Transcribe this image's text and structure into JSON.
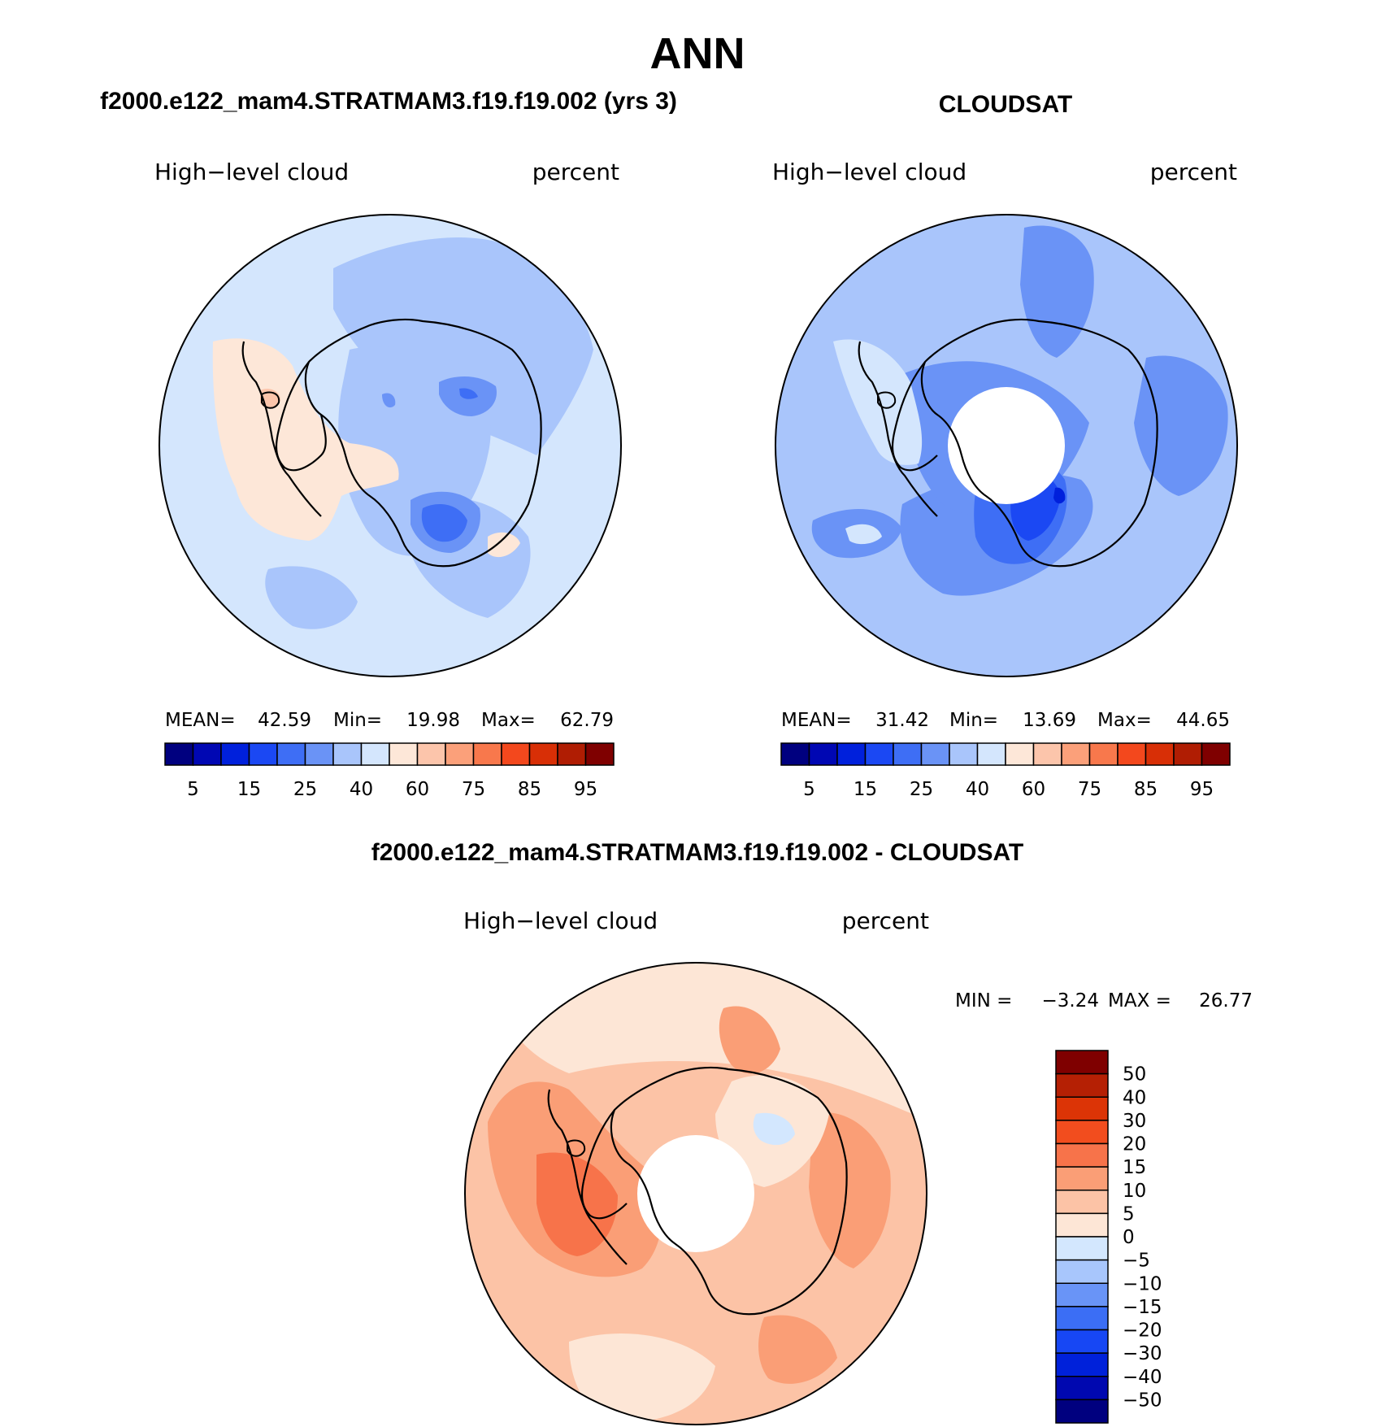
{
  "title": "ANN",
  "colors": {
    "abs_scale": [
      "#00007f",
      "#0007b3",
      "#0020dc",
      "#1b48f3",
      "#3e6ef5",
      "#6a93f6",
      "#a9c5fb",
      "#d4e6fd",
      "#fde7d8",
      "#fcc5ab",
      "#fba07a",
      "#f8784c",
      "#f3481d",
      "#d82f06",
      "#b01d03",
      "#7f0000"
    ],
    "diff_scale": [
      "#00007f",
      "#0008b0",
      "#0021da",
      "#1747f4",
      "#3b6ef5",
      "#6994f7",
      "#a8c6fc",
      "#d3e7fe",
      "#fde6d6",
      "#fcc3a6",
      "#fa9e76",
      "#f7734a",
      "#f24d1e",
      "#dc3406",
      "#b52004",
      "#7f0000"
    ]
  },
  "panels": [
    {
      "id": "model",
      "heading": "f2000.e122_mam4.STRATMAM3.f19.f19.002 (yrs 3)",
      "variable": "High−level cloud",
      "units": "percent",
      "stats": {
        "mean_label": "MEAN=",
        "mean": "42.59",
        "min_label": "Min=",
        "min": "19.98",
        "max_label": "Max=",
        "max": "62.79"
      },
      "colorbar_ticks": [
        "5",
        "15",
        "25",
        "40",
        "60",
        "75",
        "85",
        "95"
      ]
    },
    {
      "id": "obs",
      "heading": "CLOUDSAT",
      "variable": "High−level cloud",
      "units": "percent",
      "stats": {
        "mean_label": "MEAN=",
        "mean": "31.42",
        "min_label": "Min=",
        "min": "13.69",
        "max_label": "Max=",
        "max": "44.65"
      },
      "colorbar_ticks": [
        "5",
        "15",
        "25",
        "40",
        "60",
        "75",
        "85",
        "95"
      ]
    },
    {
      "id": "diff",
      "heading": "f2000.e122_mam4.STRATMAM3.f19.f19.002 - CLOUDSAT",
      "variable": "High−level cloud",
      "units": "percent",
      "stats": {
        "min_label": "MIN =",
        "min": "−3.24",
        "max_label": "MAX =",
        "max": "26.77"
      },
      "colorbar_ticks": [
        "50",
        "40",
        "30",
        "20",
        "15",
        "10",
        "5",
        "0",
        "−5",
        "−10",
        "−15",
        "−20",
        "−30",
        "−40",
        "−50"
      ]
    }
  ]
}
